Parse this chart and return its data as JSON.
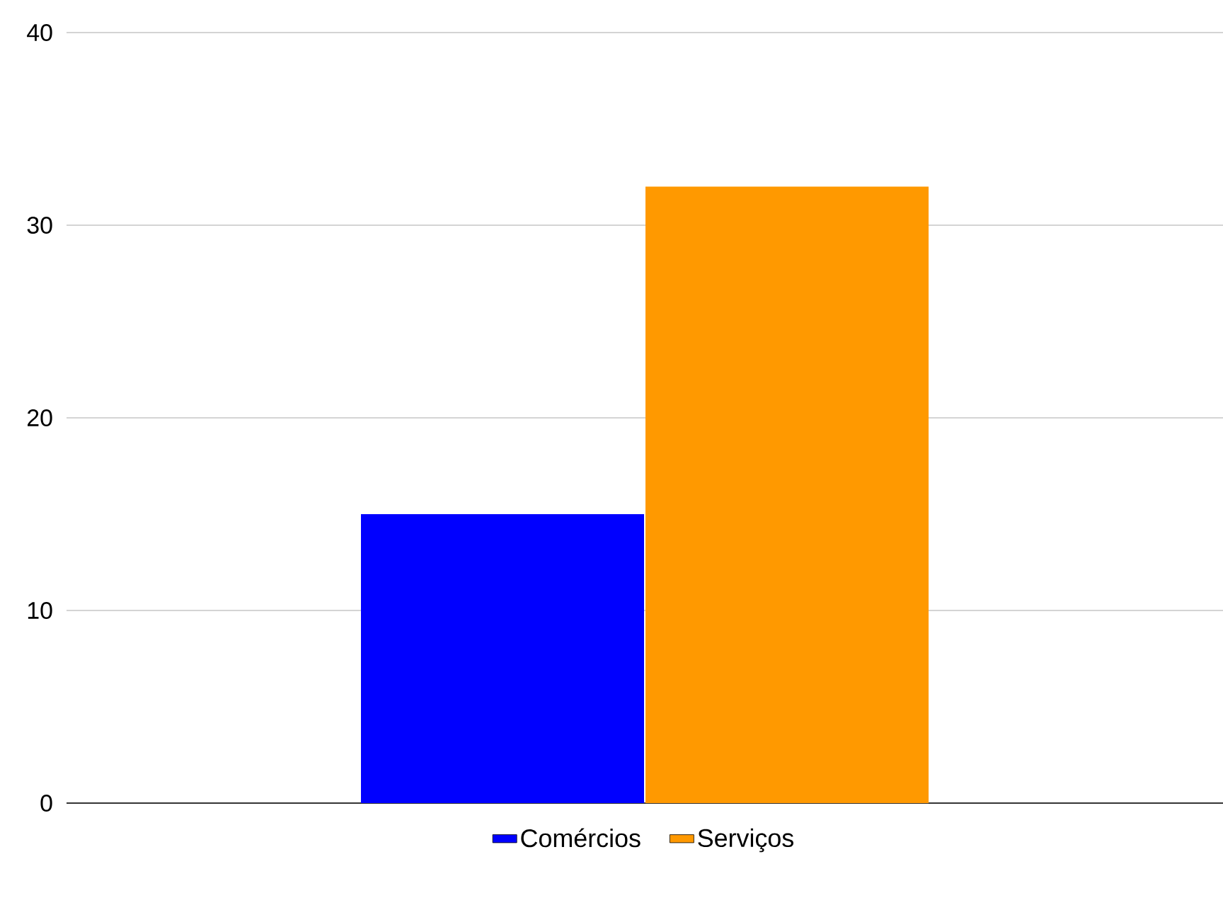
{
  "chart_data": {
    "type": "bar",
    "categories": [
      null
    ],
    "series": [
      {
        "name": "Comércios",
        "color": "#0000ff",
        "values": [
          15
        ]
      },
      {
        "name": "Serviços",
        "color": "#ff9900",
        "values": [
          32
        ]
      }
    ],
    "ylim": [
      0,
      40
    ],
    "yticks": [
      0,
      10,
      20,
      30,
      40
    ],
    "grid": "y",
    "legend": "bottom"
  }
}
